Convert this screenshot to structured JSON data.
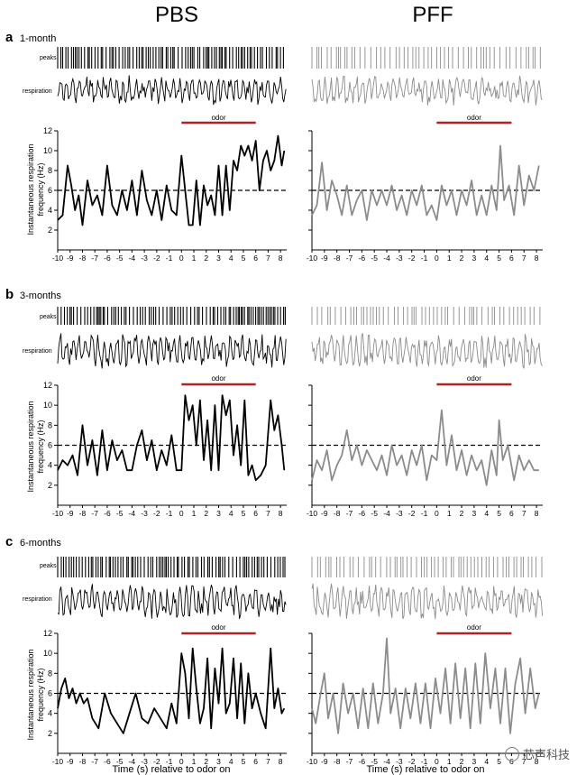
{
  "headers": {
    "left": "PBS",
    "right": "PFF"
  },
  "row_labels": {
    "peaks": "peaks",
    "respiration": "respiration",
    "odor": "odor",
    "ylabel_line1": "Instantaneous  respiration",
    "ylabel_line2": "frequency (Hz)"
  },
  "xlabel": "Time (s) relative to odor on",
  "colors": {
    "pbs": "#000000",
    "pff": "#8c8c8c",
    "odor_bar": "#b22222",
    "dashed": "#000000"
  },
  "panels": [
    {
      "letter": "a",
      "age": "1-month"
    },
    {
      "letter": "b",
      "age": "3-months"
    },
    {
      "letter": "c",
      "age": "6-months"
    }
  ],
  "watermark": "芯声科技",
  "chart_data": [
    {
      "type": "line",
      "panel": "a",
      "group": "PBS",
      "xlim": [
        -10,
        8.5
      ],
      "ylim": [
        0,
        12
      ],
      "xticks": [
        -10,
        -9,
        -8,
        -7,
        -6,
        -5,
        -4,
        -3,
        -2,
        -1,
        0,
        1,
        2,
        3,
        4,
        5,
        6,
        7,
        8
      ],
      "yticks": [
        2,
        4,
        6,
        8,
        10,
        12
      ],
      "baseline": 6,
      "odor": [
        0,
        6
      ],
      "x": [
        -10,
        -9.6,
        -9.2,
        -8.9,
        -8.6,
        -8.3,
        -8.0,
        -7.6,
        -7.2,
        -6.8,
        -6.4,
        -6.0,
        -5.6,
        -5.2,
        -4.8,
        -4.4,
        -4.0,
        -3.6,
        -3.2,
        -2.8,
        -2.4,
        -2.0,
        -1.6,
        -1.2,
        -0.8,
        -0.4,
        0,
        0.3,
        0.6,
        0.9,
        1.2,
        1.5,
        1.8,
        2.1,
        2.4,
        2.7,
        3.0,
        3.3,
        3.6,
        3.9,
        4.2,
        4.5,
        4.8,
        5.1,
        5.4,
        5.7,
        6.0,
        6.3,
        6.6,
        6.9,
        7.2,
        7.5,
        7.8,
        8.1,
        8.3
      ],
      "values": [
        3,
        3.5,
        8.5,
        6.5,
        4,
        5.5,
        2.5,
        7,
        4.5,
        5.5,
        3.5,
        8.5,
        4.5,
        3.5,
        6,
        4,
        7,
        3.5,
        8,
        5,
        3.5,
        6,
        3,
        6.5,
        4,
        3.5,
        9.5,
        6,
        2.5,
        2.5,
        7,
        2.5,
        6.5,
        4.5,
        5.5,
        3.5,
        8.5,
        3.5,
        8.5,
        4,
        9,
        8,
        10.5,
        9.5,
        10.5,
        9,
        11,
        6,
        9,
        10,
        8,
        9,
        11.5,
        8.5,
        10
      ]
    },
    {
      "type": "line",
      "panel": "a",
      "group": "PFF",
      "xlim": [
        -10,
        8.5
      ],
      "ylim": [
        0,
        12
      ],
      "xticks": [
        -10,
        -9,
        -8,
        -7,
        -6,
        -5,
        -4,
        -3,
        -2,
        -1,
        0,
        1,
        2,
        3,
        4,
        5,
        6,
        7,
        8
      ],
      "yticks": [
        2,
        4,
        6,
        8,
        10,
        12
      ],
      "baseline": 6,
      "odor": [
        0,
        6
      ],
      "x": [
        -10,
        -9.6,
        -9.2,
        -8.8,
        -8.4,
        -8.0,
        -7.6,
        -7.2,
        -6.8,
        -6.4,
        -6.0,
        -5.6,
        -5.2,
        -4.8,
        -4.4,
        -4.0,
        -3.6,
        -3.2,
        -2.8,
        -2.4,
        -2.0,
        -1.6,
        -1.2,
        -0.8,
        -0.4,
        0,
        0.4,
        0.8,
        1.2,
        1.6,
        2.0,
        2.4,
        2.8,
        3.2,
        3.6,
        4.0,
        4.4,
        4.8,
        5.1,
        5.4,
        5.8,
        6.2,
        6.6,
        7.0,
        7.4,
        7.8,
        8.2
      ],
      "values": [
        3.5,
        4.5,
        8.8,
        4,
        7,
        5.5,
        3.5,
        6.5,
        3.5,
        5,
        6,
        3,
        6,
        4.5,
        6,
        4.5,
        6.5,
        4,
        5.5,
        3.5,
        6,
        4.5,
        6.5,
        3.5,
        4.5,
        3,
        6.5,
        4.5,
        6,
        3.5,
        6,
        4.5,
        7,
        3.5,
        5.5,
        3.5,
        6.5,
        4,
        10.5,
        5,
        6.5,
        3.5,
        8.5,
        4.5,
        7.5,
        6,
        8.5
      ]
    },
    {
      "type": "line",
      "panel": "b",
      "group": "PBS",
      "xlim": [
        -10,
        8.5
      ],
      "ylim": [
        0,
        12
      ],
      "xticks": [
        -10,
        -9,
        -8,
        -7,
        -6,
        -5,
        -4,
        -3,
        -2,
        -1,
        0,
        1,
        2,
        3,
        4,
        5,
        6,
        7,
        8
      ],
      "yticks": [
        2,
        4,
        6,
        8,
        10,
        12
      ],
      "baseline": 6,
      "odor": [
        0,
        6
      ],
      "x": [
        -10,
        -9.6,
        -9.2,
        -8.8,
        -8.4,
        -8.0,
        -7.6,
        -7.2,
        -6.8,
        -6.4,
        -6.0,
        -5.6,
        -5.2,
        -4.8,
        -4.4,
        -4.0,
        -3.6,
        -3.2,
        -2.8,
        -2.4,
        -2.0,
        -1.6,
        -1.2,
        -0.8,
        -0.4,
        0,
        0.3,
        0.6,
        0.9,
        1.2,
        1.5,
        1.8,
        2.1,
        2.4,
        2.7,
        3.0,
        3.3,
        3.6,
        3.9,
        4.2,
        4.5,
        4.8,
        5.1,
        5.4,
        5.7,
        6.0,
        6.4,
        6.8,
        7.2,
        7.5,
        7.8,
        8.1,
        8.3
      ],
      "values": [
        3.5,
        4.5,
        4,
        5,
        3,
        8,
        4,
        6.5,
        3,
        7.5,
        3.5,
        6.5,
        4.5,
        5.5,
        3.5,
        3.5,
        6,
        7.5,
        4.5,
        6.5,
        3.5,
        5.5,
        4,
        7,
        3.5,
        3.5,
        11,
        8.5,
        10,
        6,
        10.5,
        4.5,
        8.5,
        3.5,
        10,
        3.5,
        11,
        9,
        10.5,
        5,
        8,
        4,
        10.5,
        3,
        4,
        2.5,
        3,
        4,
        10.5,
        7.5,
        9,
        6,
        3.5
      ]
    },
    {
      "type": "line",
      "panel": "b",
      "group": "PFF",
      "xlim": [
        -10,
        8.5
      ],
      "ylim": [
        0,
        12
      ],
      "xticks": [
        -10,
        -9,
        -8,
        -7,
        -6,
        -5,
        -4,
        -3,
        -2,
        -1,
        0,
        1,
        2,
        3,
        4,
        5,
        6,
        7,
        8
      ],
      "yticks": [
        2,
        4,
        6,
        8,
        10,
        12
      ],
      "baseline": 6,
      "odor": [
        0,
        6
      ],
      "x": [
        -10,
        -9.6,
        -9.2,
        -8.8,
        -8.4,
        -8.0,
        -7.6,
        -7.2,
        -6.8,
        -6.4,
        -6.0,
        -5.6,
        -5.2,
        -4.8,
        -4.4,
        -4.0,
        -3.6,
        -3.2,
        -2.8,
        -2.4,
        -2.0,
        -1.6,
        -1.2,
        -0.8,
        -0.4,
        0,
        0.4,
        0.8,
        1.2,
        1.6,
        2.0,
        2.4,
        2.8,
        3.2,
        3.6,
        4.0,
        4.4,
        4.8,
        5.0,
        5.3,
        5.7,
        6.2,
        6.6,
        7.0,
        7.4,
        7.8,
        8.2
      ],
      "values": [
        2.5,
        4.5,
        3.5,
        5.5,
        2.5,
        4,
        5,
        7.5,
        4.5,
        6,
        4,
        5.5,
        4.5,
        3.5,
        5,
        3,
        6,
        4,
        5,
        3,
        5.5,
        4,
        6,
        2.5,
        5,
        4.5,
        9.5,
        4,
        7,
        3.5,
        5.5,
        3,
        5,
        3.5,
        4.5,
        2,
        5.5,
        3,
        8.5,
        4.5,
        6,
        2.5,
        5,
        3.5,
        4.5,
        3.5,
        3.5
      ]
    },
    {
      "type": "line",
      "panel": "c",
      "group": "PBS",
      "xlim": [
        -10,
        8.5
      ],
      "ylim": [
        0,
        12
      ],
      "xticks": [
        -10,
        -9,
        -8,
        -7,
        -6,
        -5,
        -4,
        -3,
        -2,
        -1,
        0,
        1,
        2,
        3,
        4,
        5,
        6,
        7,
        8
      ],
      "yticks": [
        2,
        4,
        6,
        8,
        10,
        12
      ],
      "baseline": 6,
      "odor": [
        0,
        6
      ],
      "x": [
        -10,
        -9.7,
        -9.4,
        -9.1,
        -8.8,
        -8.5,
        -8.2,
        -7.9,
        -7.6,
        -7.2,
        -6.7,
        -6.2,
        -5.7,
        -5.2,
        -4.7,
        -4.2,
        -3.7,
        -3.2,
        -2.7,
        -2.2,
        -1.7,
        -1.2,
        -0.8,
        -0.4,
        0,
        0.3,
        0.6,
        0.9,
        1.2,
        1.5,
        1.8,
        2.1,
        2.4,
        2.7,
        3.0,
        3.3,
        3.6,
        3.9,
        4.2,
        4.5,
        4.8,
        5.1,
        5.4,
        5.7,
        6.0,
        6.4,
        6.8,
        7.2,
        7.5,
        7.8,
        8.1,
        8.3
      ],
      "values": [
        4.5,
        6.5,
        7.5,
        5.5,
        6.5,
        5,
        6,
        5,
        5.5,
        3.5,
        2.5,
        6,
        4,
        3,
        2,
        4,
        6,
        3.5,
        3,
        4.5,
        3.5,
        2.5,
        5,
        3,
        10,
        8,
        3.5,
        10.5,
        6.5,
        3,
        4.5,
        9.5,
        2.5,
        8.5,
        5,
        10.5,
        4,
        5,
        9.5,
        3.5,
        9,
        3,
        8,
        4.5,
        6,
        4,
        2.5,
        10.5,
        4.5,
        6.5,
        4,
        4.5
      ]
    },
    {
      "type": "line",
      "panel": "c",
      "group": "PFF",
      "xlim": [
        -10,
        8.5
      ],
      "ylim": [
        0,
        12
      ],
      "xticks": [
        -10,
        -9,
        -8,
        -7,
        -6,
        -5,
        -4,
        -3,
        -2,
        -1,
        0,
        1,
        2,
        3,
        4,
        5,
        6,
        7,
        8
      ],
      "yticks": [
        2,
        4,
        6,
        8,
        10,
        12
      ],
      "baseline": 6,
      "odor": [
        0,
        6
      ],
      "x": [
        -10,
        -9.7,
        -9.3,
        -9.0,
        -8.7,
        -8.3,
        -7.9,
        -7.5,
        -7.1,
        -6.7,
        -6.3,
        -5.9,
        -5.5,
        -5.1,
        -4.7,
        -4.3,
        -4.0,
        -3.7,
        -3.3,
        -2.9,
        -2.5,
        -2.1,
        -1.7,
        -1.3,
        -0.9,
        -0.5,
        -0.1,
        0.3,
        0.7,
        1.1,
        1.5,
        1.9,
        2.3,
        2.7,
        3.1,
        3.5,
        3.9,
        4.3,
        4.7,
        5.1,
        5.5,
        5.9,
        6.3,
        6.7,
        7.1,
        7.5,
        7.9,
        8.2
      ],
      "values": [
        4.5,
        3,
        6,
        8,
        3.5,
        6,
        2,
        7,
        4,
        6,
        2.5,
        6.5,
        2.5,
        7,
        3,
        6,
        11.5,
        4,
        6.5,
        2.5,
        6.5,
        3.5,
        7,
        3,
        7,
        2.5,
        7.5,
        4,
        8.5,
        3,
        9,
        3.5,
        8.5,
        2.5,
        9,
        3,
        10,
        4.5,
        8.5,
        3,
        8.5,
        2,
        7,
        9.5,
        4,
        8.5,
        4.5,
        6
      ]
    }
  ]
}
